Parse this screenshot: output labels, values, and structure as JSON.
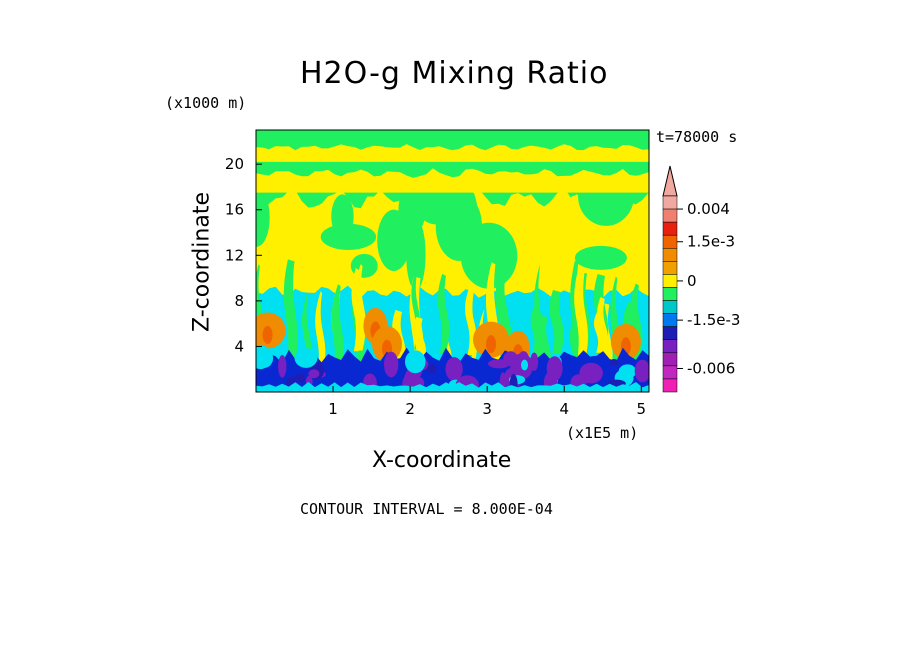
{
  "chart_data": {
    "type": "heatmap",
    "title": "H2O-g Mixing Ratio",
    "xlabel": "X-coordinate",
    "ylabel": "Z-coordinate",
    "x_unit": "(x1E5 m)",
    "y_unit": "(x1000 m)",
    "time_label": "t=78000 s",
    "footer": "CONTOUR INTERVAL = 8.000E-04",
    "xlim": [
      0.0,
      5.1
    ],
    "ylim": [
      0.0,
      23.0
    ],
    "x_ticks": [
      {
        "v": 1,
        "label": "1"
      },
      {
        "v": 2,
        "label": "2"
      },
      {
        "v": 3,
        "label": "3"
      },
      {
        "v": 4,
        "label": "4"
      },
      {
        "v": 5,
        "label": "5"
      }
    ],
    "y_ticks": [
      {
        "v": 4,
        "label": "4"
      },
      {
        "v": 8,
        "label": "8"
      },
      {
        "v": 12,
        "label": "12"
      },
      {
        "v": 16,
        "label": "16"
      },
      {
        "v": 20,
        "label": "20"
      }
    ],
    "colorbar": {
      "levels_top_to_bottom": [
        "#f0a8a0",
        "#f08070",
        "#e82010",
        "#f06400",
        "#f08c00",
        "#f0a000",
        "#fff000",
        "#20f060",
        "#00c8c8",
        "#0078f0",
        "#1e1eb4",
        "#7820c0",
        "#a020b4",
        "#c028c0",
        "#f020b4"
      ],
      "labels": [
        {
          "text": "0.004",
          "level": 1
        },
        {
          "text": "1.5e-3",
          "level": 3.5
        },
        {
          "text": "0",
          "level": 6.5
        },
        {
          "text": "-1.5e-3",
          "level": 9.5
        },
        {
          "text": "-0.006",
          "level": 13.2
        }
      ]
    },
    "palette": {
      "yellow": "#fff000",
      "green": "#20f060",
      "cyan": "#00e0f0",
      "blue": "#0a28d2",
      "navy": "#1e1eb4",
      "purple": "#7820c0",
      "orange": "#f08c00",
      "darkorange": "#f06400",
      "magenta": "#c028c0"
    }
  }
}
